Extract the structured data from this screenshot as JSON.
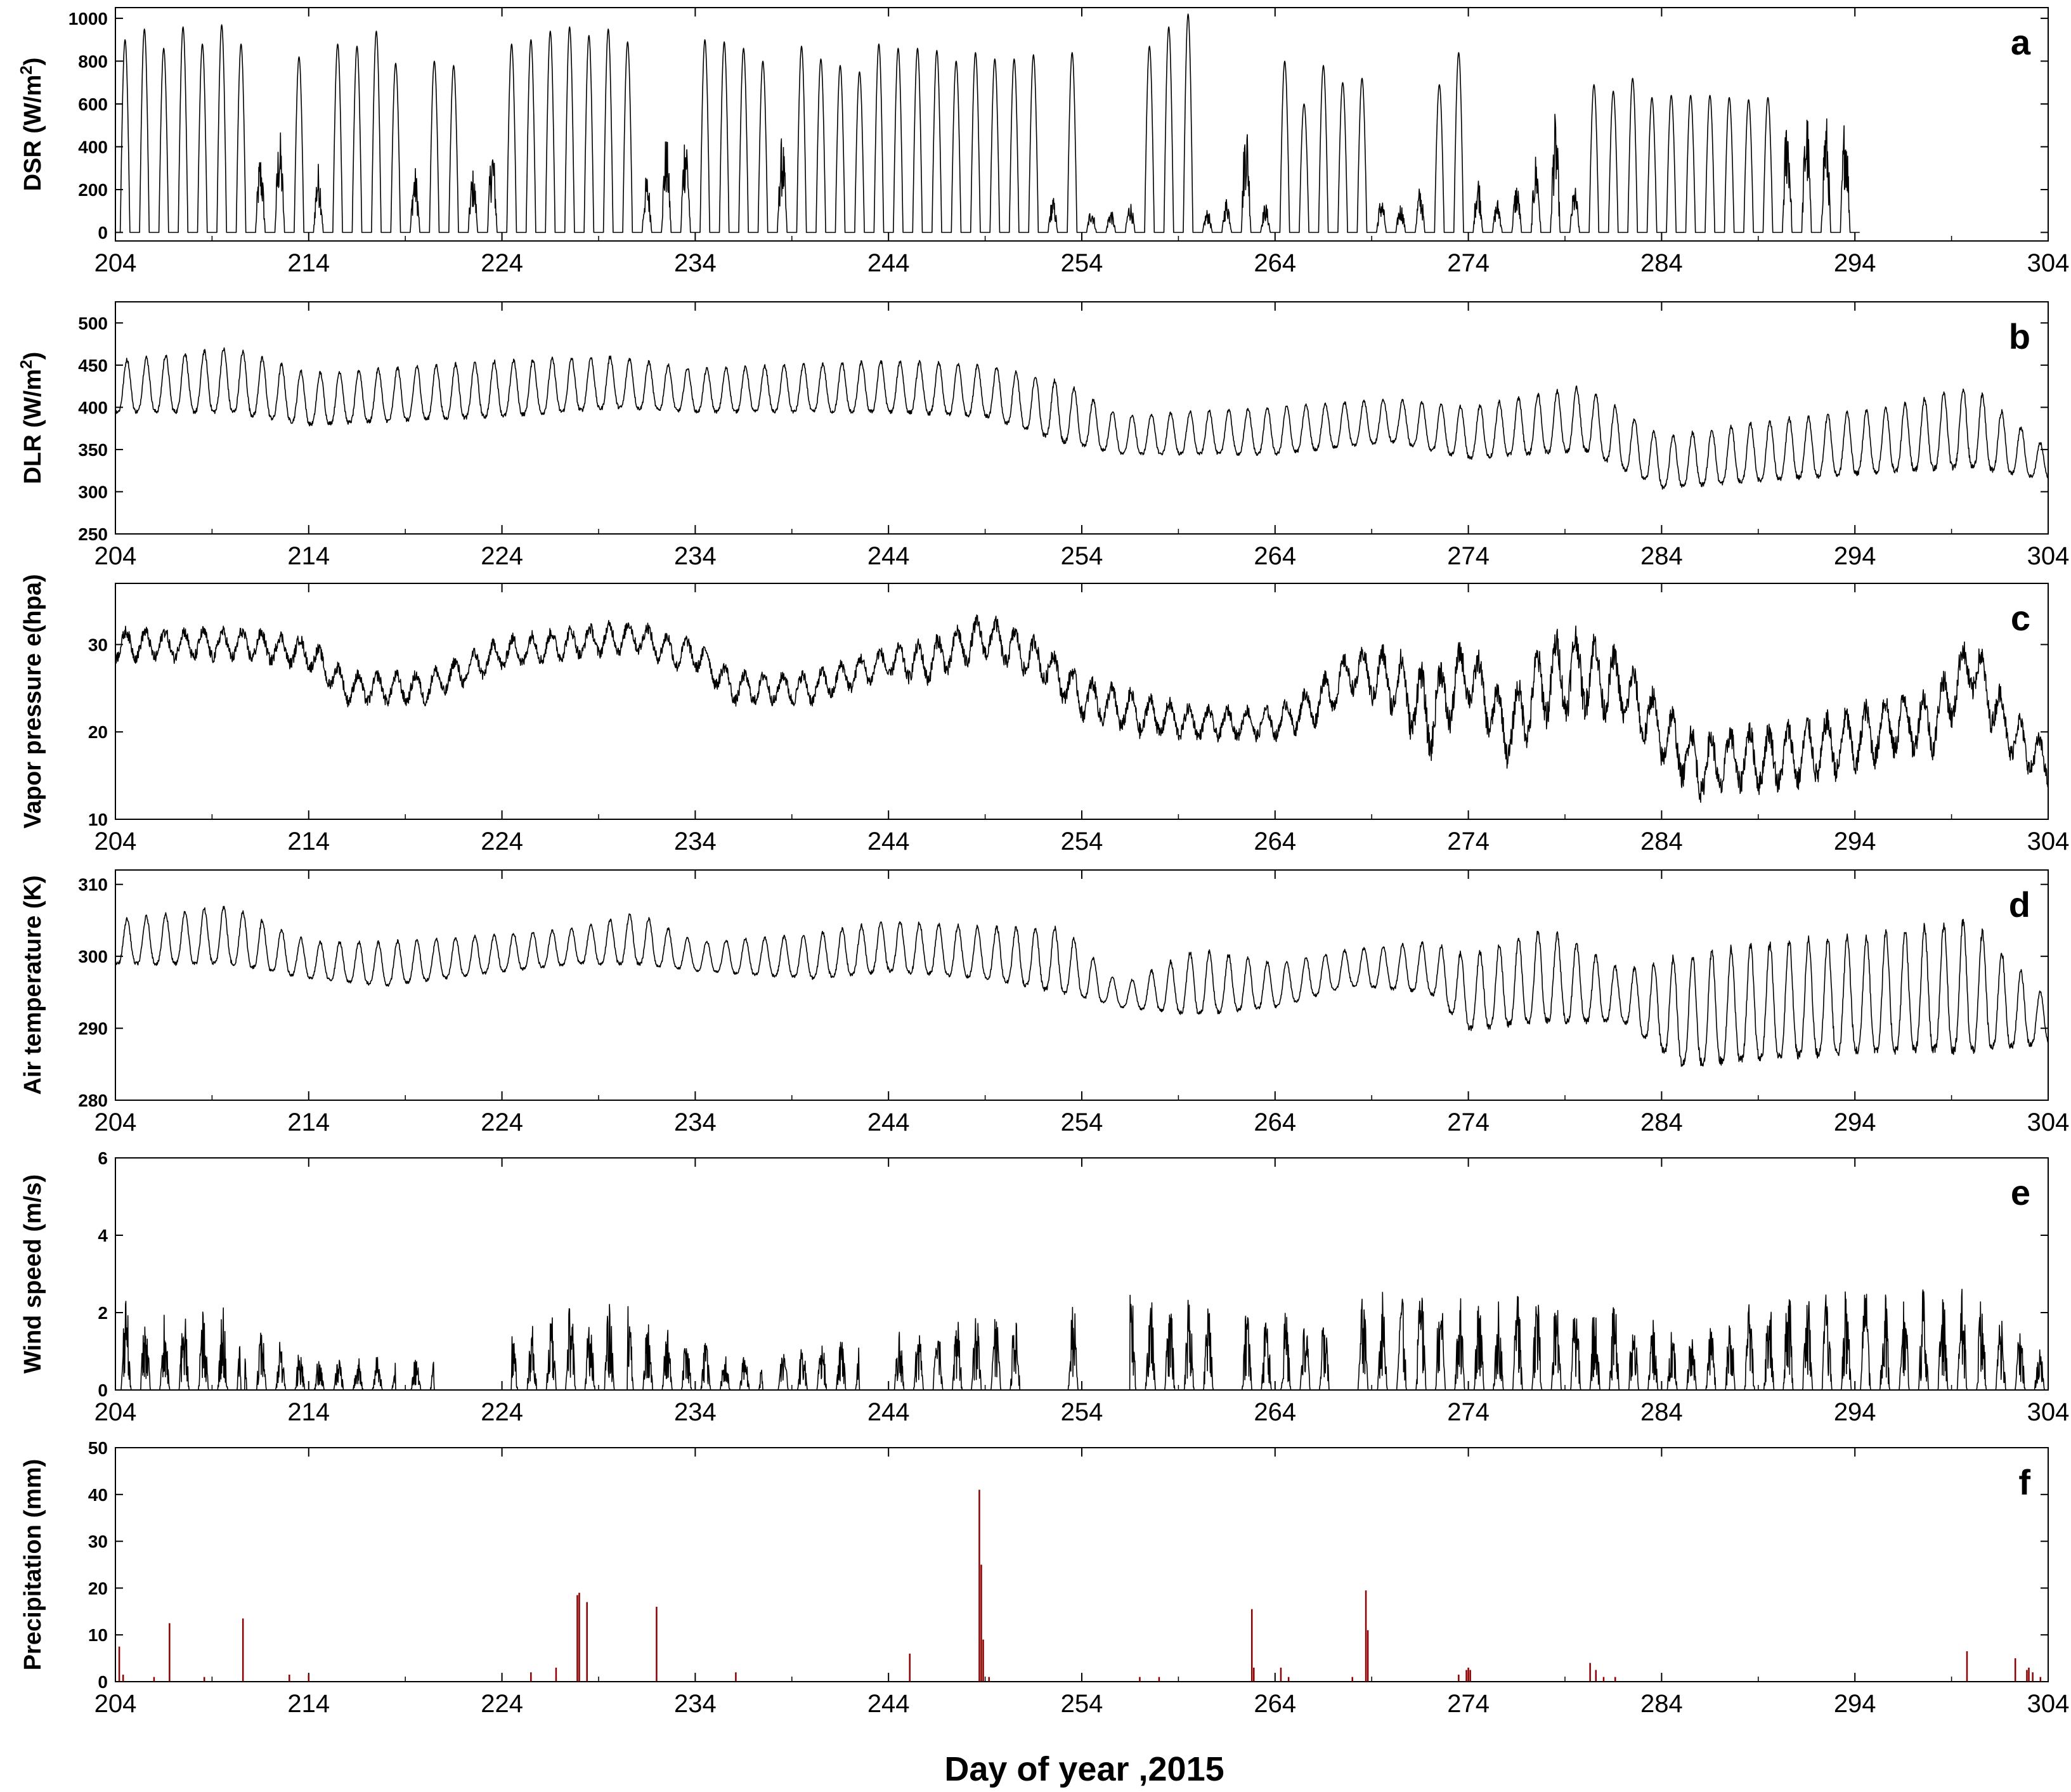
{
  "figure": {
    "xlabel": "Day of year ,2015"
  },
  "chart_data": [
    {
      "type": "line",
      "panel": "a",
      "ylabel": "DSR (W/m²)",
      "ylabel_main": "DSR (W/m",
      "ylabel_sup": "2",
      "ylabel_end": ")",
      "xlim": [
        204,
        304
      ],
      "ylim": [
        -40,
        1050
      ],
      "xticks": [
        204,
        214,
        224,
        234,
        244,
        254,
        264,
        274,
        284,
        294,
        304
      ],
      "yticks": [
        0,
        200,
        400,
        600,
        800,
        1000
      ],
      "series": [
        {
          "kind": "diurnal-solar",
          "color": "#000000",
          "daily_peak_day": [
            204,
            205,
            206,
            207,
            208,
            209,
            210,
            211,
            212,
            213,
            214,
            215,
            216,
            217,
            218,
            219,
            220,
            221,
            222,
            223,
            224,
            225,
            226,
            227,
            228,
            229,
            230,
            231,
            232,
            233,
            234,
            235,
            236,
            237,
            238,
            239,
            240,
            241,
            242,
            243,
            244,
            245,
            246,
            247,
            248,
            249,
            250,
            251,
            252,
            253,
            254,
            255,
            256,
            257,
            258,
            259,
            260,
            261,
            262,
            263,
            264,
            265,
            266,
            267,
            268,
            269,
            270,
            271,
            272,
            273,
            274,
            275,
            276,
            277,
            278,
            279,
            280,
            281,
            282,
            283,
            284,
            285,
            286,
            287,
            288,
            289,
            290,
            291,
            292,
            293,
            294,
            295,
            296,
            297,
            298,
            299,
            300,
            301,
            302,
            303
          ],
          "daily_peak_value": [
            900,
            950,
            860,
            960,
            880,
            970,
            880,
            380,
            490,
            820,
            330,
            880,
            870,
            940,
            790,
            310,
            800,
            780,
            300,
            430,
            880,
            900,
            940,
            960,
            920,
            950,
            890,
            280,
            460,
            520,
            900,
            890,
            860,
            800,
            460,
            870,
            810,
            780,
            750,
            880,
            860,
            860,
            850,
            800,
            840,
            810,
            810,
            830,
            170,
            840,
            120,
            110,
            150,
            870,
            960,
            1020,
            110,
            170,
            560,
            140,
            800,
            600,
            780,
            700,
            720,
            170,
            140,
            220,
            690,
            840,
            280,
            160,
            240,
            380,
            560,
            220,
            690,
            660,
            720,
            630,
            640,
            640,
            640,
            630,
            620,
            630,
            590,
            590,
            570,
            580
          ]
        }
      ]
    },
    {
      "type": "line",
      "panel": "b",
      "ylabel": "DLR (W/m²)",
      "ylabel_main": "DLR (W/m",
      "ylabel_sup": "2",
      "ylabel_end": ")",
      "xlim": [
        204,
        304
      ],
      "ylim": [
        250,
        525
      ],
      "xticks": [
        204,
        214,
        224,
        234,
        244,
        254,
        264,
        274,
        284,
        294,
        304
      ],
      "yticks": [
        250,
        300,
        350,
        400,
        450,
        500
      ],
      "series": [
        {
          "kind": "diurnal",
          "color": "#000000",
          "anchor_days": [
            204,
            210,
            214,
            224,
            230,
            234,
            244,
            249,
            253,
            256,
            264,
            270,
            274,
            280,
            284,
            290,
            296,
            300,
            304
          ],
          "daily_min": [
            395,
            395,
            380,
            390,
            400,
            395,
            395,
            390,
            360,
            345,
            345,
            360,
            340,
            350,
            305,
            315,
            325,
            330,
            315
          ],
          "daily_max": [
            455,
            470,
            440,
            455,
            460,
            445,
            455,
            450,
            430,
            390,
            400,
            410,
            400,
            425,
            365,
            385,
            400,
            425,
            350
          ]
        }
      ]
    },
    {
      "type": "line",
      "panel": "c",
      "ylabel": "Vapor pressure e(hpa)",
      "xlim": [
        204,
        304
      ],
      "ylim": [
        10,
        37
      ],
      "xticks": [
        204,
        214,
        224,
        234,
        244,
        254,
        264,
        274,
        284,
        294,
        304
      ],
      "yticks": [
        10,
        20,
        30
      ],
      "series": [
        {
          "kind": "irregular",
          "color": "#000000",
          "anchor_days": [
            204,
            208,
            211,
            214,
            216,
            220,
            224,
            227,
            231,
            233,
            234,
            236,
            240,
            244,
            246,
            248,
            249,
            252,
            254,
            257,
            260,
            264,
            266,
            268,
            270,
            272,
            274,
            276,
            278,
            280,
            282,
            284,
            286,
            288,
            290,
            292,
            294,
            296,
            298,
            300,
            302,
            304
          ],
          "values": [
            30,
            30,
            30,
            29,
            25,
            25,
            29,
            30,
            31,
            29,
            29,
            25,
            25,
            28,
            28,
            30,
            31,
            28,
            24,
            22,
            21,
            21,
            23,
            27,
            26,
            22,
            27,
            20,
            26,
            27,
            25,
            20,
            16,
            17,
            17,
            18,
            19,
            21,
            21,
            28,
            20,
            16
          ],
          "daily_amplitude": [
            1.5,
            1.5,
            1.5,
            1.5,
            1.5,
            1.5,
            1.5,
            1.5,
            1.5,
            1.5,
            1.5,
            1.5,
            1.5,
            1.5,
            2,
            2,
            2,
            2,
            2,
            2,
            1.5,
            1.5,
            2,
            2,
            3,
            4,
            3,
            3,
            4,
            4,
            3,
            3,
            3,
            3,
            3,
            3,
            3,
            3,
            3,
            3,
            2.5,
            2
          ]
        }
      ]
    },
    {
      "type": "line",
      "panel": "d",
      "ylabel": "Air temperature (K)",
      "xlim": [
        204,
        304
      ],
      "ylim": [
        280,
        312
      ],
      "xticks": [
        204,
        214,
        224,
        234,
        244,
        254,
        264,
        274,
        284,
        294,
        304
      ],
      "yticks": [
        280,
        290,
        300,
        310
      ],
      "series": [
        {
          "kind": "diurnal",
          "color": "#000000",
          "anchor_days": [
            204,
            210,
            214,
            218,
            224,
            228,
            231,
            234,
            240,
            244,
            249,
            253,
            256,
            260,
            264,
            268,
            272,
            274,
            278,
            282,
            285,
            290,
            295,
            300,
            304
          ],
          "daily_min": [
            299,
            299,
            297,
            296,
            298,
            299,
            299,
            298,
            297,
            298,
            297,
            295,
            293,
            292,
            293,
            296,
            295,
            290,
            291,
            291,
            285,
            286,
            287,
            287,
            288
          ],
          "daily_max": [
            305,
            307,
            302,
            302,
            303,
            304,
            306,
            302,
            303,
            305,
            304,
            304,
            296,
            301,
            299,
            301,
            302,
            300,
            304,
            298,
            300,
            302,
            303,
            305,
            294
          ]
        }
      ]
    },
    {
      "type": "line",
      "panel": "e",
      "ylabel": "Wind speed (m/s)",
      "xlim": [
        204,
        304
      ],
      "ylim": [
        0,
        6
      ],
      "xticks": [
        204,
        214,
        224,
        234,
        244,
        254,
        264,
        274,
        284,
        294,
        304
      ],
      "yticks": [
        0,
        2,
        4,
        6
      ],
      "series": [
        {
          "kind": "gusty",
          "color": "#000000",
          "active_ranges": [
            [
              204,
              210.5
            ],
            [
              210.7,
              218.5
            ],
            [
              219,
              220.5
            ],
            [
              224.5,
              230
            ],
            [
              230.5,
              237.5
            ],
            [
              238,
              242.5
            ],
            [
              243.8,
              251
            ],
            [
              253.3,
              254
            ],
            [
              256.5,
              261
            ],
            [
              262,
              267
            ],
            [
              268,
              304
            ]
          ],
          "peak_profile_days": [
            204,
            206,
            210,
            214,
            222,
            228,
            231,
            236,
            248,
            257,
            265,
            272,
            276,
            281,
            286,
            290,
            294,
            298,
            300,
            304
          ],
          "peak_profile_values": [
            2.5,
            2.0,
            2.2,
            0.9,
            0.9,
            2.5,
            2.2,
            0.9,
            1.9,
            2.7,
            2.0,
            3.0,
            2.5,
            2.5,
            1.5,
            3.0,
            2.7,
            2.7,
            2.6,
            1.0
          ]
        }
      ]
    },
    {
      "type": "bar",
      "panel": "f",
      "ylabel": "Precipitation (mm)",
      "xlim": [
        204,
        304
      ],
      "ylim": [
        0,
        50
      ],
      "xticks": [
        204,
        214,
        224,
        234,
        244,
        254,
        264,
        274,
        284,
        294,
        304
      ],
      "yticks": [
        0,
        10,
        20,
        30,
        40,
        50
      ],
      "series": [
        {
          "color": "#000000",
          "edge_color": "#8b0000",
          "x": [
            204.2,
            204.4,
            206.0,
            206.8,
            208.6,
            210.6,
            213.0,
            214.0,
            225.5,
            226.8,
            227.9,
            228.0,
            228.4,
            232.0,
            236.1,
            245.1,
            248.7,
            248.8,
            248.9,
            249.2,
            257.0,
            258.0,
            262.8,
            262.9,
            264.3,
            264.7,
            268.0,
            268.7,
            268.8,
            273.5,
            273.9,
            274.0,
            274.1,
            280.3,
            280.6,
            281.0,
            281.6,
            299.8,
            302.3,
            302.9,
            303.0,
            303.2,
            303.6
          ],
          "values": [
            7.5,
            1.5,
            1.0,
            12.5,
            1.0,
            13.5,
            1.5,
            1.5,
            2.0,
            3.0,
            18.5,
            19.0,
            17.0,
            16.0,
            2.0,
            6.0,
            41.0,
            25.0,
            9.0,
            1.0,
            1.0,
            1.0,
            15.5,
            3.0,
            3.0,
            1.0,
            1.0,
            19.5,
            11.0,
            1.5,
            2.5,
            3.0,
            2.5,
            4.0,
            2.5,
            1.0,
            1.0,
            6.5,
            5.0,
            2.5,
            3.0,
            2.0,
            1.0
          ]
        }
      ]
    }
  ]
}
